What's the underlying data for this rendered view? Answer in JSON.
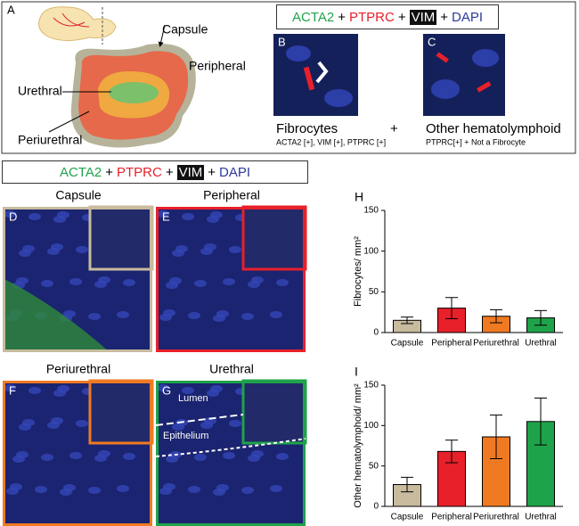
{
  "figure": {
    "panel_a": {
      "letter": "A",
      "capsule": "Capsule",
      "peripheral": "Peripheral",
      "urethral": "Urethral",
      "periurethral": "Periurethral"
    },
    "stains": {
      "joiner": "+",
      "markers": [
        {
          "name": "ACTA2",
          "color": "#1fa34a"
        },
        {
          "name": "PTPRC",
          "color": "#e8202a"
        },
        {
          "name": "VIM",
          "color": "#ffffff",
          "inverted": true
        },
        {
          "name": "DAPI",
          "color": "#2b3a9a"
        }
      ]
    },
    "panel_b": {
      "letter": "B",
      "caption": "Fibrocytes",
      "plus": "+",
      "sub": "ACTA2 [+], VIM [+], PTPRC [+]"
    },
    "panel_c": {
      "letter": "C",
      "caption": "Other hematolymphoid",
      "sub": "PTPRC[+] + Not a Fibrocyte"
    },
    "micro": [
      {
        "letter": "D",
        "title": "Capsule",
        "border": "#c8bb9e"
      },
      {
        "letter": "E",
        "title": "Peripheral",
        "border": "#e8202a"
      },
      {
        "letter": "F",
        "title": "Periurethral",
        "border": "#f07a22"
      },
      {
        "letter": "G",
        "title": "Urethral",
        "border": "#1fa34a",
        "lumen": "Lumen",
        "epithelium": "Epithelium"
      }
    ]
  },
  "chart_data": [
    {
      "type": "bar",
      "panel": "H",
      "ylabel": "Fibrocytes/ mm²",
      "categories": [
        "Capsule",
        "Peripheral",
        "Periurethral",
        "Urethral"
      ],
      "colors": [
        "#c8bb9e",
        "#e8202a",
        "#f07a22",
        "#1fa34a"
      ],
      "values": [
        15,
        30,
        20,
        18
      ],
      "errors": [
        4,
        13,
        8,
        9
      ],
      "ylim": [
        0,
        150
      ],
      "yticks": [
        0,
        50,
        100,
        150
      ]
    },
    {
      "type": "bar",
      "panel": "I",
      "ylabel": "Other hematolymphoid/ mm²",
      "categories": [
        "Capsule",
        "Peripheral",
        "Periurethral",
        "Urethral"
      ],
      "colors": [
        "#c8bb9e",
        "#e8202a",
        "#f07a22",
        "#1fa34a"
      ],
      "values": [
        27,
        68,
        86,
        105
      ],
      "errors": [
        9,
        14,
        27,
        29
      ],
      "ylim": [
        0,
        150
      ],
      "yticks": [
        0,
        50,
        100,
        150
      ]
    }
  ]
}
